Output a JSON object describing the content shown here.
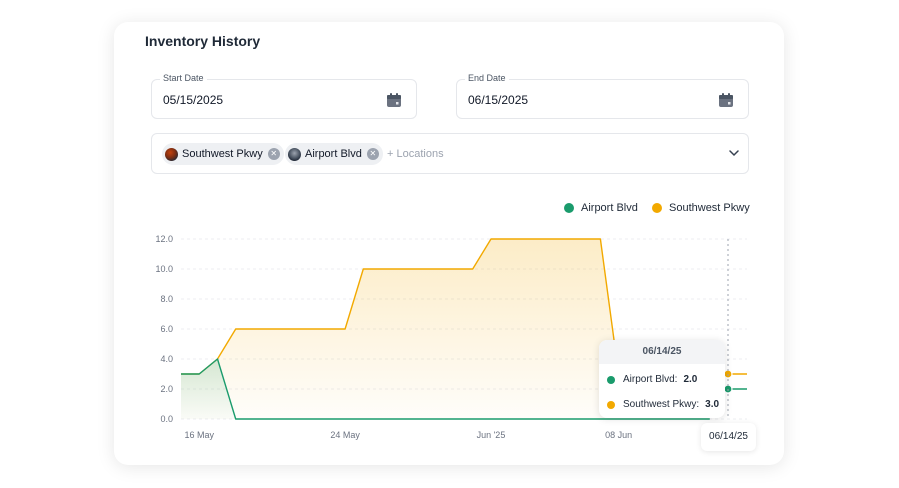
{
  "header": {
    "title": "Inventory History"
  },
  "filters": {
    "start": {
      "label": "Start Date",
      "value": "05/15/2025"
    },
    "end": {
      "label": "End Date",
      "value": "06/15/2025"
    },
    "locations": {
      "chips": [
        "Southwest Pkwy",
        "Airport Blvd"
      ],
      "placeholder": "+ Locations"
    }
  },
  "colors": {
    "airport": "#1a9b6c",
    "southwest": "#f2a900"
  },
  "chart_data": {
    "type": "area",
    "title": "",
    "xlabel": "",
    "ylabel": "",
    "ylim": [
      0,
      12
    ],
    "yticks": [
      "0.0",
      "2.0",
      "4.0",
      "6.0",
      "8.0",
      "10.0",
      "12.0"
    ],
    "xticks": [
      {
        "label": "16 May",
        "x": "2025-05-16"
      },
      {
        "label": "24 May",
        "x": "2025-05-24"
      },
      {
        "label": "Jun '25",
        "x": "2025-06-01"
      },
      {
        "label": "08 Jun",
        "x": "2025-06-08"
      }
    ],
    "xrange": [
      "2025-05-15",
      "2025-06-14"
    ],
    "grid": true,
    "legend": {
      "position": "top-right"
    },
    "series": [
      {
        "name": "Airport Blvd",
        "color": "#1a9b6c",
        "points": [
          [
            "2025-05-15",
            3
          ],
          [
            "2025-05-16",
            3
          ],
          [
            "2025-05-17",
            4
          ],
          [
            "2025-05-18",
            0
          ],
          [
            "2025-06-08",
            0
          ],
          [
            "2025-06-13",
            0
          ],
          [
            "2025-06-14",
            2
          ]
        ]
      },
      {
        "name": "Southwest Pkwy",
        "color": "#f2a900",
        "points": [
          [
            "2025-05-15",
            3
          ],
          [
            "2025-05-16",
            3
          ],
          [
            "2025-05-17",
            4
          ],
          [
            "2025-05-18",
            6
          ],
          [
            "2025-05-24",
            6
          ],
          [
            "2025-05-25",
            10
          ],
          [
            "2025-05-31",
            10
          ],
          [
            "2025-06-01",
            12
          ],
          [
            "2025-06-07",
            12
          ],
          [
            "2025-06-08",
            3
          ],
          [
            "2025-06-14",
            3
          ]
        ]
      }
    ],
    "hover": {
      "date": "06/14/25",
      "x_badge": "06/14/25",
      "rows": [
        {
          "name": "Airport Blvd",
          "label": "Airport Blvd:",
          "value": "2.0"
        },
        {
          "name": "Southwest Pkwy",
          "label": "Southwest Pkwy:",
          "value": "3.0"
        }
      ]
    }
  }
}
